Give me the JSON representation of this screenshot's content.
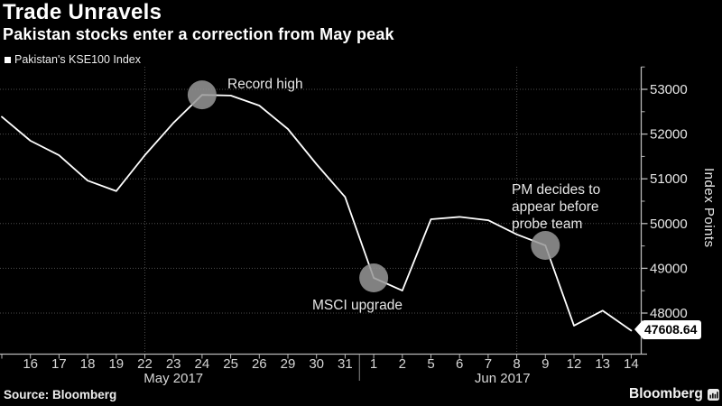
{
  "header": {
    "title": "Trade Unravels",
    "subtitle": "Pakistan stocks enter a correction from May peak",
    "legend_label": "Pakistan's KSE100 Index"
  },
  "icons": {
    "legend_marker": "filled-square",
    "brand_icon": "bloomberg-bars-icon"
  },
  "chart_data": {
    "type": "line",
    "title": "Trade Unravels",
    "series_name": "Pakistan's KSE100 Index",
    "ylabel": "Index Points",
    "ylim": [
      47100,
      53500
    ],
    "yticks": [
      48000,
      49000,
      50000,
      51000,
      52000,
      53000
    ],
    "minor_ytick_step": 500,
    "grid": "dotted",
    "line_color": "#ffffff",
    "marker_color": "rgba(152,152,152,0.85)",
    "axis_color": "#b8b8b8",
    "grid_color": "#4d4d4d",
    "points": [
      {
        "date": "May 15",
        "label": "",
        "value": 52388
      },
      {
        "date": "May 16",
        "label": "16",
        "value": 51850
      },
      {
        "date": "May 17",
        "label": "17",
        "value": 51526
      },
      {
        "date": "May 18",
        "label": "18",
        "value": 50960
      },
      {
        "date": "May 19",
        "label": "19",
        "value": 50725
      },
      {
        "date": "May 22",
        "label": "22",
        "value": 51529
      },
      {
        "date": "May 23",
        "label": "23",
        "value": 52251
      },
      {
        "date": "May 24",
        "label": "24",
        "value": 52876
      },
      {
        "date": "May 25",
        "label": "25",
        "value": 52861
      },
      {
        "date": "May 26",
        "label": "26",
        "value": 52637
      },
      {
        "date": "May 29",
        "label": "29",
        "value": 52112
      },
      {
        "date": "May 30",
        "label": "30",
        "value": 51327
      },
      {
        "date": "May 31",
        "label": "31",
        "value": 50592
      },
      {
        "date": "Jun 1",
        "label": "1",
        "value": 48786
      },
      {
        "date": "Jun 2",
        "label": "2",
        "value": 48502
      },
      {
        "date": "Jun 5",
        "label": "5",
        "value": 50096
      },
      {
        "date": "Jun 6",
        "label": "6",
        "value": 50149
      },
      {
        "date": "Jun 7",
        "label": "7",
        "value": 50074
      },
      {
        "date": "Jun 8",
        "label": "8",
        "value": 49758
      },
      {
        "date": "Jun 9",
        "label": "9",
        "value": 49512
      },
      {
        "date": "Jun 12",
        "label": "12",
        "value": 47719
      },
      {
        "date": "Jun 13",
        "label": "13",
        "value": 48054
      },
      {
        "date": "Jun 14",
        "label": "14",
        "value": 47608.64
      }
    ],
    "month_groups": [
      {
        "label": "May 2017",
        "from": 0,
        "to": 12
      },
      {
        "label": "Jun 2017",
        "from": 13,
        "to": 22
      }
    ],
    "vertical_gridline_dates": [
      "May 22",
      "Jun 8"
    ],
    "annotations": [
      {
        "id": "record-high",
        "date": "May 24",
        "value": 52876,
        "lines": [
          "Record high"
        ]
      },
      {
        "id": "msci-upgrade",
        "date": "Jun 1",
        "value": 48786,
        "lines": [
          "MSCI upgrade"
        ]
      },
      {
        "id": "pm-probe",
        "date": "Jun 9",
        "value": 49512,
        "lines": [
          "PM decides to",
          "appear before",
          "probe team"
        ]
      }
    ],
    "last_price": "47608.64"
  },
  "footer": {
    "source": "Source: Bloomberg",
    "brand": "Bloomberg"
  }
}
